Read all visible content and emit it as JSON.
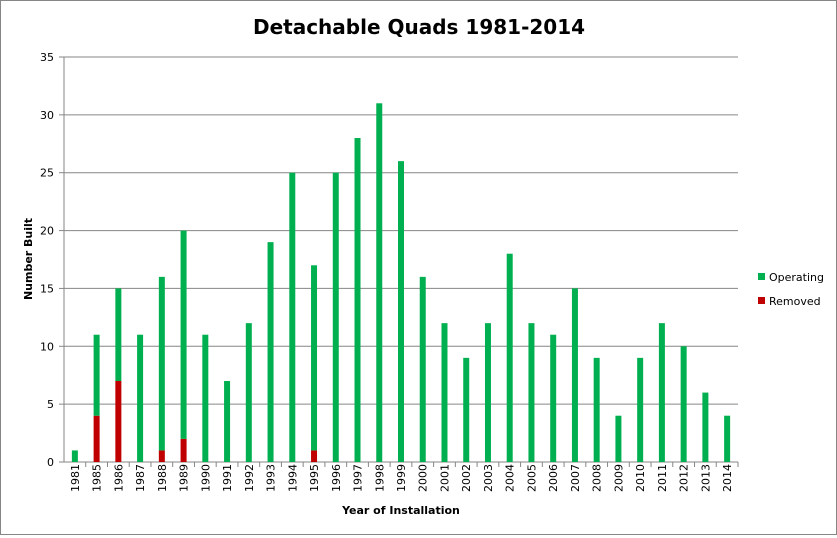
{
  "chart_data": {
    "type": "bar",
    "stacked": true,
    "title": "Detachable Quads 1981-2014",
    "xlabel": "Year of Installation",
    "ylabel": "Number Built",
    "ylim": [
      0,
      35
    ],
    "yticks": [
      0,
      5,
      10,
      15,
      20,
      25,
      30,
      35
    ],
    "grid": true,
    "legend": "right",
    "categories": [
      "1981",
      "1985",
      "1986",
      "1987",
      "1988",
      "1989",
      "1990",
      "1991",
      "1992",
      "1993",
      "1994",
      "1995",
      "1996",
      "1997",
      "1998",
      "1999",
      "2000",
      "2001",
      "2002",
      "2003",
      "2004",
      "2005",
      "2006",
      "2007",
      "2008",
      "2009",
      "2010",
      "2011",
      "2012",
      "2013",
      "2014"
    ],
    "series": [
      {
        "name": "Removed",
        "color": "#c00000",
        "values": [
          0,
          4,
          7,
          0,
          1,
          2,
          0,
          0,
          0,
          0,
          0,
          1,
          0,
          0,
          0,
          0,
          0,
          0,
          0,
          0,
          0,
          0,
          0,
          0,
          0,
          0,
          0,
          0,
          0,
          0,
          0
        ]
      },
      {
        "name": "Operating",
        "color": "#00b050",
        "values": [
          1,
          7,
          8,
          11,
          15,
          18,
          11,
          7,
          12,
          19,
          25,
          16,
          25,
          28,
          31,
          26,
          16,
          12,
          9,
          12,
          18,
          12,
          11,
          15,
          9,
          4,
          9,
          12,
          10,
          6,
          4
        ]
      }
    ],
    "legend_order": [
      "Operating",
      "Removed"
    ]
  }
}
